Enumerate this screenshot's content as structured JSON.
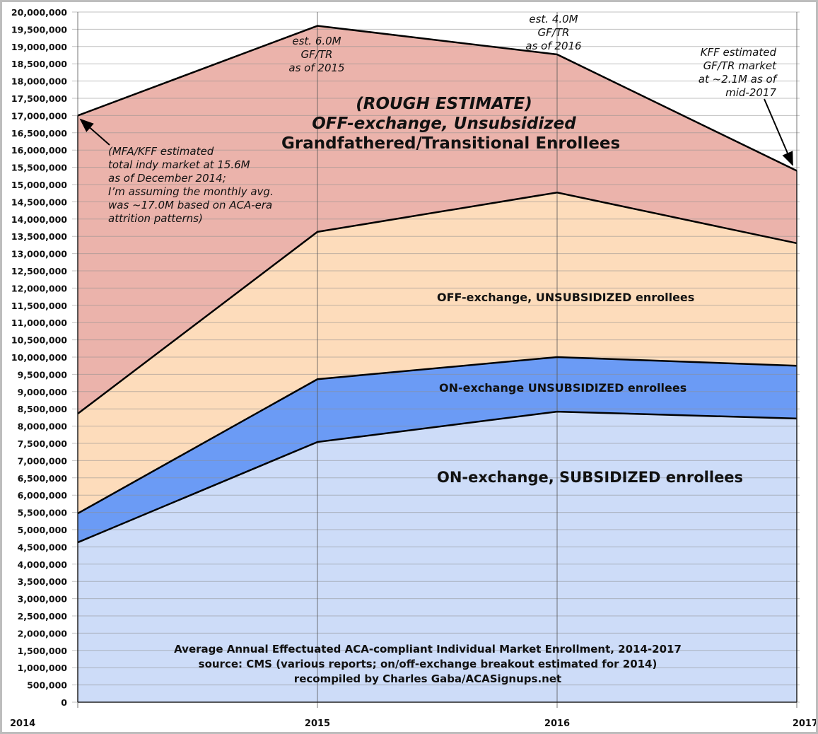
{
  "chart_data": {
    "type": "area",
    "stacked": true,
    "title": "Average Annual Effectuated ACA-compliant Individual Market Enrollment, 2014-2017",
    "subtitle": "source: CMS (various reports; on/off-exchange breakout estimated for 2014)",
    "credit": "recompiled by Charles Gaba/ACASignups.net",
    "categories": [
      "2014",
      "2015",
      "2016",
      "2017"
    ],
    "ylim": [
      0,
      20000000
    ],
    "ytick_step": 500000,
    "grid": true,
    "series": [
      {
        "name": "ON-exchange, SUBSIDIZED enrollees",
        "color": "#cddcf8",
        "values": [
          4630000,
          7540000,
          8420000,
          8220000
        ]
      },
      {
        "name": "ON-exchange UNSUBSIDIZED enrollees",
        "color": "#6b9bf5",
        "values": [
          840000,
          1820000,
          1580000,
          1530000
        ]
      },
      {
        "name": "OFF-exchange, UNSUBSIDIZED enrollees",
        "color": "#fddcbb",
        "values": [
          2890000,
          4270000,
          4770000,
          3550000
        ]
      },
      {
        "name_lines": [
          "(ROUGH ESTIMATE)",
          "OFF-exchange, Unsubsidized",
          "Grandfathered/Transitional Enrollees"
        ],
        "color": "#ebb3ab",
        "values": [
          8640000,
          5970000,
          4000000,
          2100000
        ]
      }
    ],
    "annotations": {
      "a2014": [
        "(MFA/KFF estimated",
        "total indy market at 15.6M",
        "as of December 2014;",
        "I’m assuming the monthly avg.",
        "was ~17.0M based on ACA-era",
        "attrition patterns)"
      ],
      "a2015": [
        "est. 6.0M",
        "GF/TR",
        "as of 2015"
      ],
      "a2016": [
        "est. 4.0M",
        "GF/TR",
        "as of 2016"
      ],
      "a2017": [
        "KFF estimated",
        "GF/TR market",
        "at ~2.1M as of",
        "mid-2017"
      ]
    }
  }
}
